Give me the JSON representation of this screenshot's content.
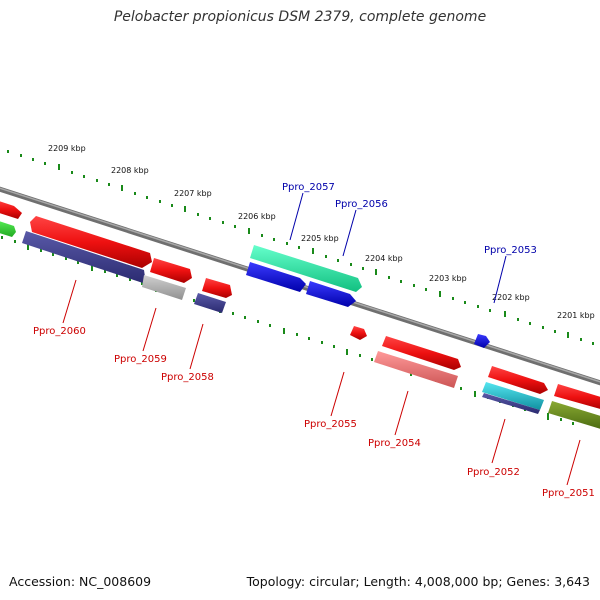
{
  "title": "Pelobacter propionicus DSM 2379, complete genome",
  "accession": "Accession: NC_008609",
  "summary": "Topology: circular; Length: 4,008,000 bp; Genes: 3,643",
  "kbp_labels": [
    "2209 kbp",
    "2208 kbp",
    "2207 kbp",
    "2206 kbp",
    "2205 kbp",
    "2204 kbp",
    "2203 kbp",
    "2202 kbp",
    "2201 kbp"
  ],
  "genes_forward": [
    "Ppro_2057",
    "Ppro_2056",
    "Ppro_2053"
  ],
  "genes_reverse": [
    "Ppro_2060",
    "Ppro_2059",
    "Ppro_2058",
    "Ppro_2055",
    "Ppro_2054",
    "Ppro_2052",
    "Ppro_2051"
  ],
  "colors": {
    "backbone": "#7a7a7a",
    "ticks": "#1a8a1a",
    "forward_label": "#0000aa",
    "reverse_label": "#cc0000",
    "gene_red": "#ee1111",
    "gene_blue": "#1a1aee",
    "gene_teal": "#22e0a0",
    "gene_navy": "#3a3a88",
    "gene_gray": "#b0b0b0",
    "gene_salmon": "#ee7777",
    "gene_cyan": "#22c4d4",
    "gene_olive": "#6a8a1a",
    "gene_green": "#33cc33"
  }
}
